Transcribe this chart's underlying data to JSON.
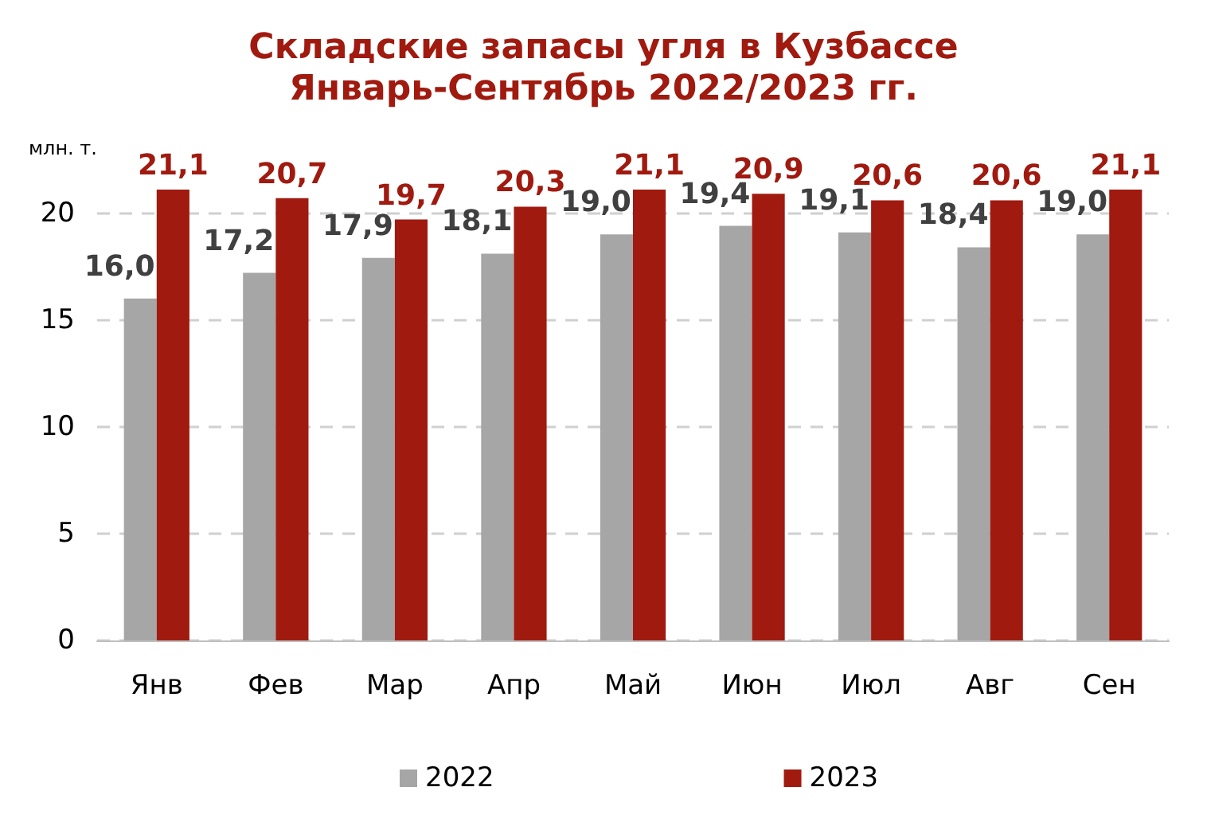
{
  "chart_data": {
    "type": "bar",
    "title": "Складские запасы угля в Кузбассе",
    "subtitle": "Январь-Сентябрь 2022/2023 гг.",
    "ylabel": "млн. т.",
    "categories": [
      "Янв",
      "Фев",
      "Мар",
      "Апр",
      "Май",
      "Июн",
      "Июл",
      "Авг",
      "Сен"
    ],
    "series": [
      {
        "name": "2022",
        "color": "#a6a6a6",
        "values": [
          16.0,
          17.2,
          17.9,
          18.1,
          19.0,
          19.4,
          19.1,
          18.4,
          19.0
        ],
        "value_labels": [
          "16,0",
          "17,2",
          "17,9",
          "18,1",
          "19,0",
          "19,4",
          "19,1",
          "18,4",
          "19,0"
        ]
      },
      {
        "name": "2023",
        "color": "#a01a10",
        "values": [
          21.1,
          20.7,
          19.7,
          20.3,
          21.1,
          20.9,
          20.6,
          20.6,
          21.1
        ],
        "value_labels": [
          "21,1",
          "20,7",
          "19,7",
          "20,3",
          "21,1",
          "20,9",
          "20,6",
          "20,6",
          "21,1"
        ]
      }
    ],
    "ylim": [
      0,
      21.1
    ],
    "yticks": [
      0,
      5,
      10,
      15,
      20
    ],
    "grid": "y",
    "legend": "bottom"
  }
}
